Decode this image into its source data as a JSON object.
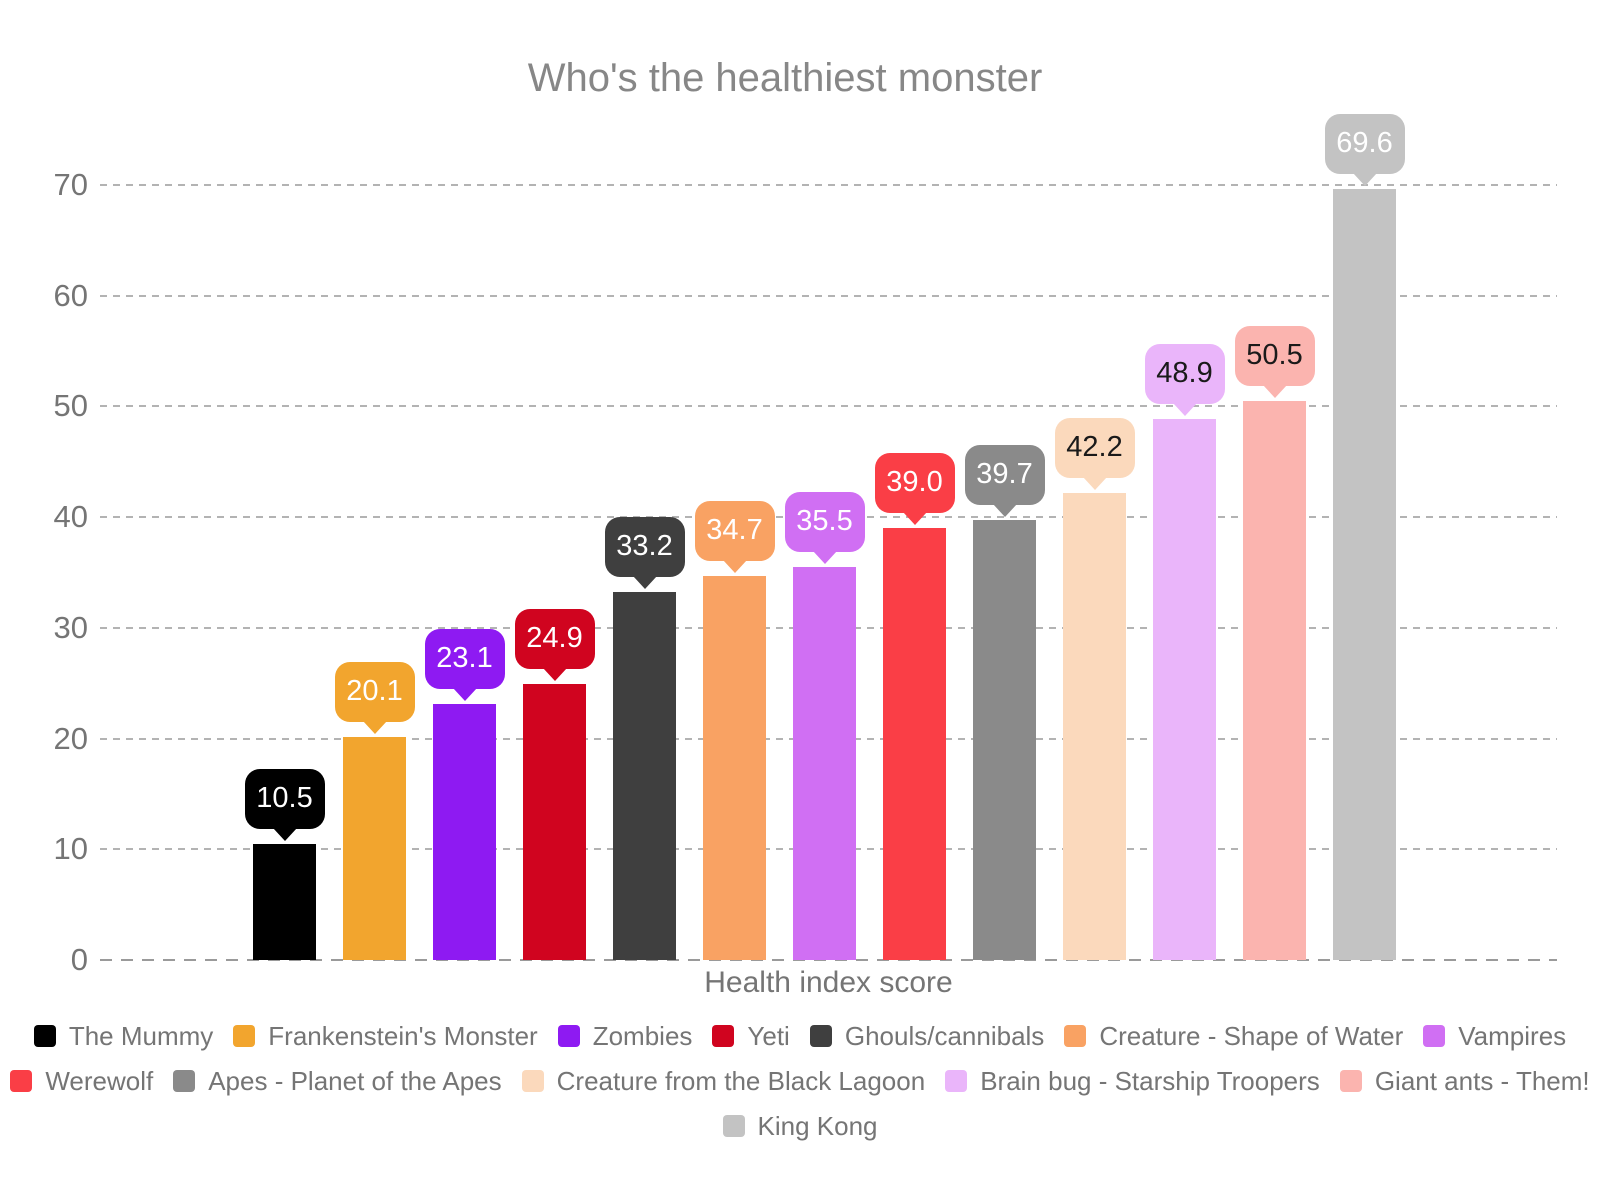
{
  "chart_data": {
    "type": "bar",
    "title": "Who's the healthiest monster",
    "xlabel": "Health index score",
    "ylabel": "",
    "ylim": [
      0,
      70
    ],
    "yticks": [
      0,
      10,
      20,
      30,
      40,
      50,
      60,
      70
    ],
    "grid": "horizontal-dashed",
    "legend_position": "bottom",
    "categories": [
      "The Mummy",
      "Frankenstein's Monster",
      "Zombies",
      "Yeti",
      "Ghouls/cannibals",
      "Creature - Shape of Water",
      "Vampires",
      "Werewolf",
      "Apes - Planet of the Apes",
      "Creature from the Black Lagoon",
      "Brain bug - Starship Troopers",
      "Giant ants - Them!",
      "King Kong"
    ],
    "values": [
      10.5,
      20.1,
      23.1,
      24.9,
      33.2,
      34.7,
      35.5,
      39.0,
      39.7,
      42.2,
      48.9,
      50.5,
      69.6
    ],
    "value_labels": [
      "10.5",
      "20.1",
      "23.1",
      "24.9",
      "33.2",
      "34.7",
      "35.5",
      "39.0",
      "39.7",
      "42.2",
      "48.9",
      "50.5",
      "69.6"
    ],
    "colors": [
      "#000000",
      "#F2A52E",
      "#8E1AF2",
      "#D0041F",
      "#3F3F3F",
      "#F9A263",
      "#D06FF3",
      "#FA3E46",
      "#8A8A8A",
      "#FBD9BC",
      "#EAB5FA",
      "#FBB4AF",
      "#C3C3C3"
    ],
    "callout_text_colors": [
      "#FFFFFF",
      "#FFFFFF",
      "#FFFFFF",
      "#FFFFFF",
      "#FFFFFF",
      "#FFFFFF",
      "#FFFFFF",
      "#FFFFFF",
      "#FFFFFF",
      "#1A1A1A",
      "#1A1A1A",
      "#1A1A1A",
      "#FFFFFF"
    ],
    "legend_rows": [
      7,
      5,
      1
    ],
    "axis_text_color": "#757575",
    "title_color": "#878787"
  }
}
